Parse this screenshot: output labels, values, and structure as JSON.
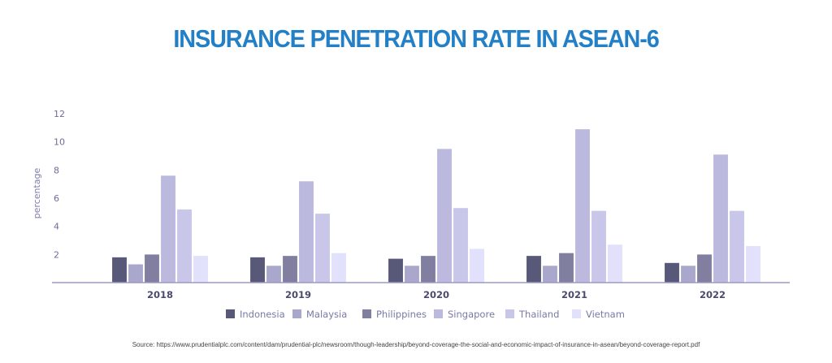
{
  "title": "INSURANCE PENETRATION RATE IN ASEAN-6",
  "source": "Source: https://www.prudentialplc.com/content/dam/prudential-plc/newsroom/though-leadership/beyond-coverage-the-social-and-economic-impact-of-insurance-in-asean/beyond-coverage-report.pdf",
  "chart_data": {
    "type": "bar",
    "title": "INSURANCE PENETRATION RATE IN ASEAN-6",
    "xlabel": "",
    "ylabel": "percentage",
    "ylim": [
      0,
      12
    ],
    "yticks": [
      2,
      4,
      6,
      8,
      10,
      12
    ],
    "grid": false,
    "legend_position": "bottom",
    "categories": [
      "2018",
      "2019",
      "2020",
      "2021",
      "2022"
    ],
    "series": [
      {
        "name": "Indonesia",
        "color": "#585878",
        "values": [
          1.8,
          1.8,
          1.7,
          1.9,
          1.4
        ]
      },
      {
        "name": "Malaysia",
        "color": "#a9a8cc",
        "values": [
          1.3,
          1.2,
          1.2,
          1.2,
          1.2
        ]
      },
      {
        "name": "Philippines",
        "color": "#807f9f",
        "values": [
          2.0,
          1.9,
          1.9,
          2.1,
          2.0
        ]
      },
      {
        "name": "Singapore",
        "color": "#bbbade",
        "values": [
          7.6,
          7.2,
          9.5,
          10.9,
          9.1
        ]
      },
      {
        "name": "Thailand",
        "color": "#c8c7ea",
        "values": [
          5.2,
          4.9,
          5.3,
          5.1,
          5.1
        ]
      },
      {
        "name": "Vietnam",
        "color": "#e2e1fb",
        "values": [
          1.9,
          2.1,
          2.4,
          2.7,
          2.6
        ]
      }
    ],
    "axis_color": "#9a99c8"
  }
}
